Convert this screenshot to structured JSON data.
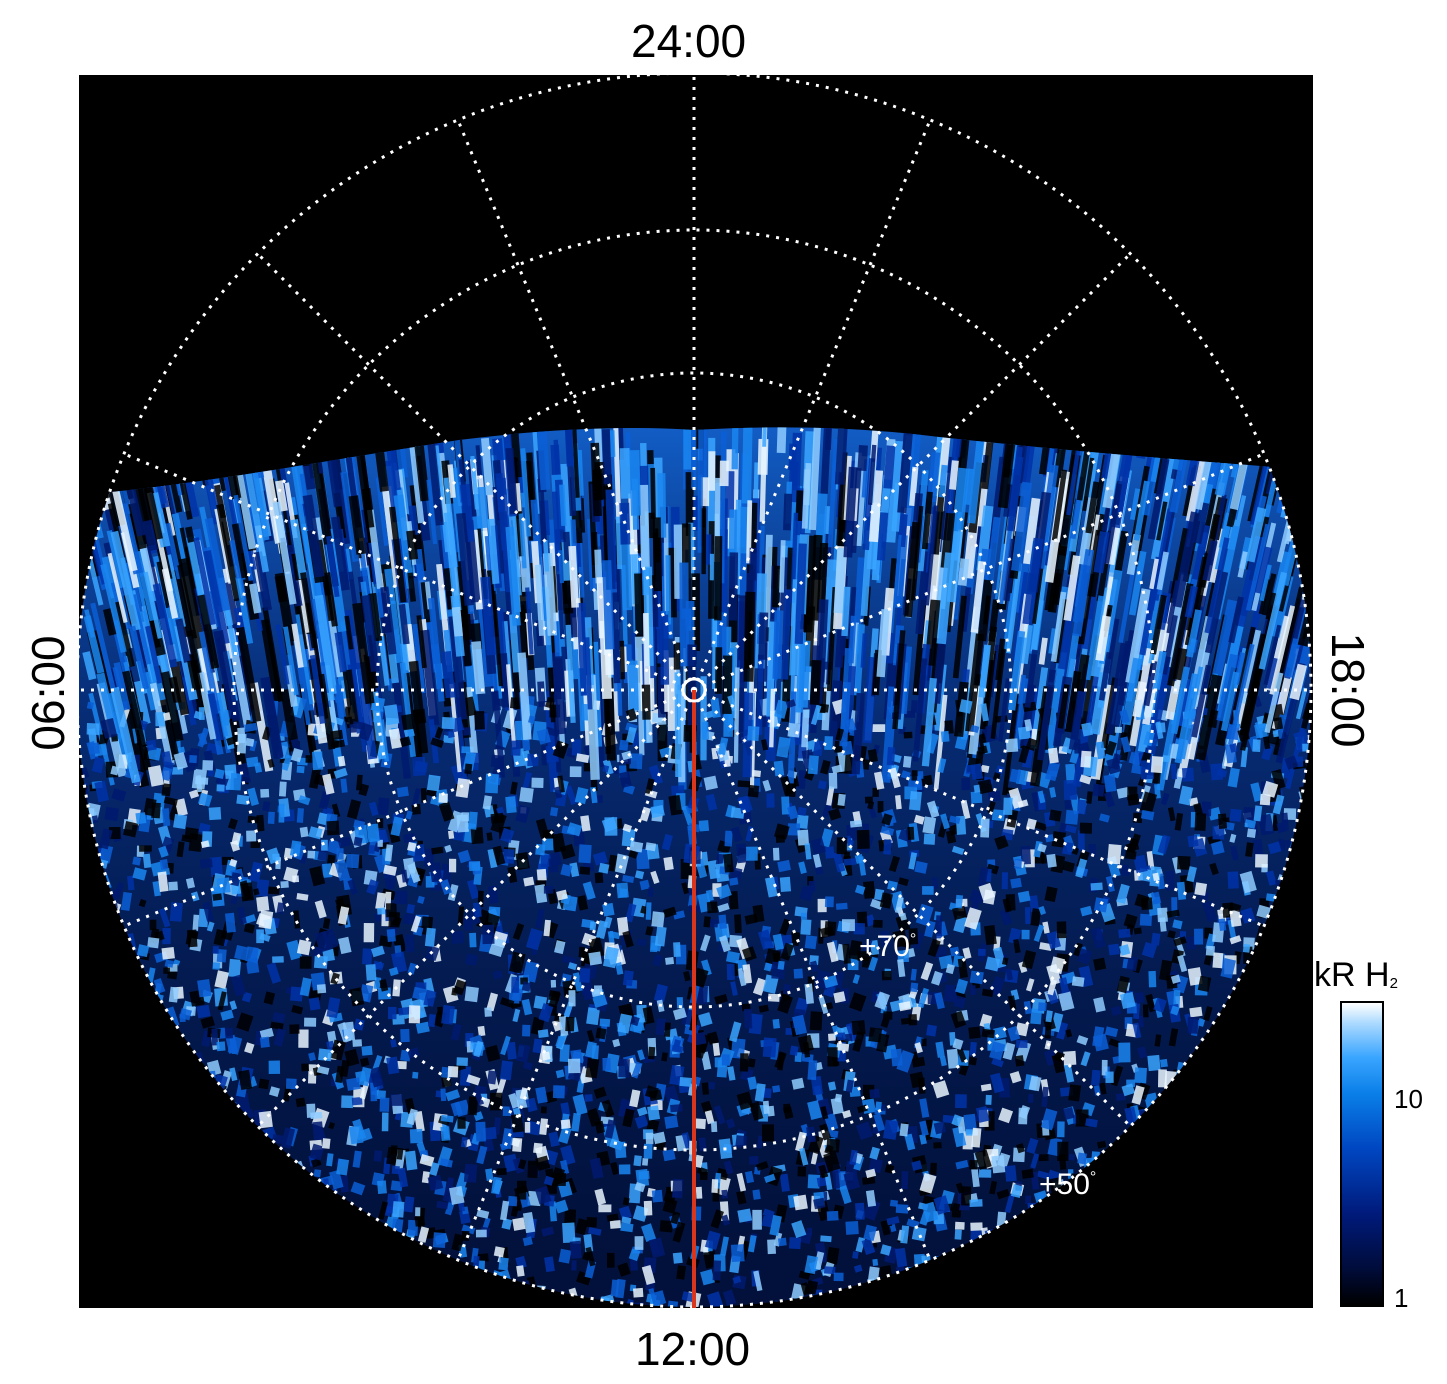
{
  "local_time_labels": {
    "top": "24:00",
    "bottom": "12:00",
    "left": "06:00",
    "right": "18:00"
  },
  "latitude_labels": {
    "inner": "+70",
    "outer": "+50",
    "degree_symbol": "°"
  },
  "colorbar": {
    "unit": "kR H",
    "unit_subscript": "2",
    "ticks": [
      "10",
      "1"
    ],
    "scale": "log",
    "colors": [
      "#000000",
      "#001a7a",
      "#0a7fe8",
      "#3aa5ff",
      "#ffffff"
    ]
  },
  "colors": {
    "background": "#000000",
    "grid": "#ffffff",
    "meridian_line": "#d9361e"
  }
}
